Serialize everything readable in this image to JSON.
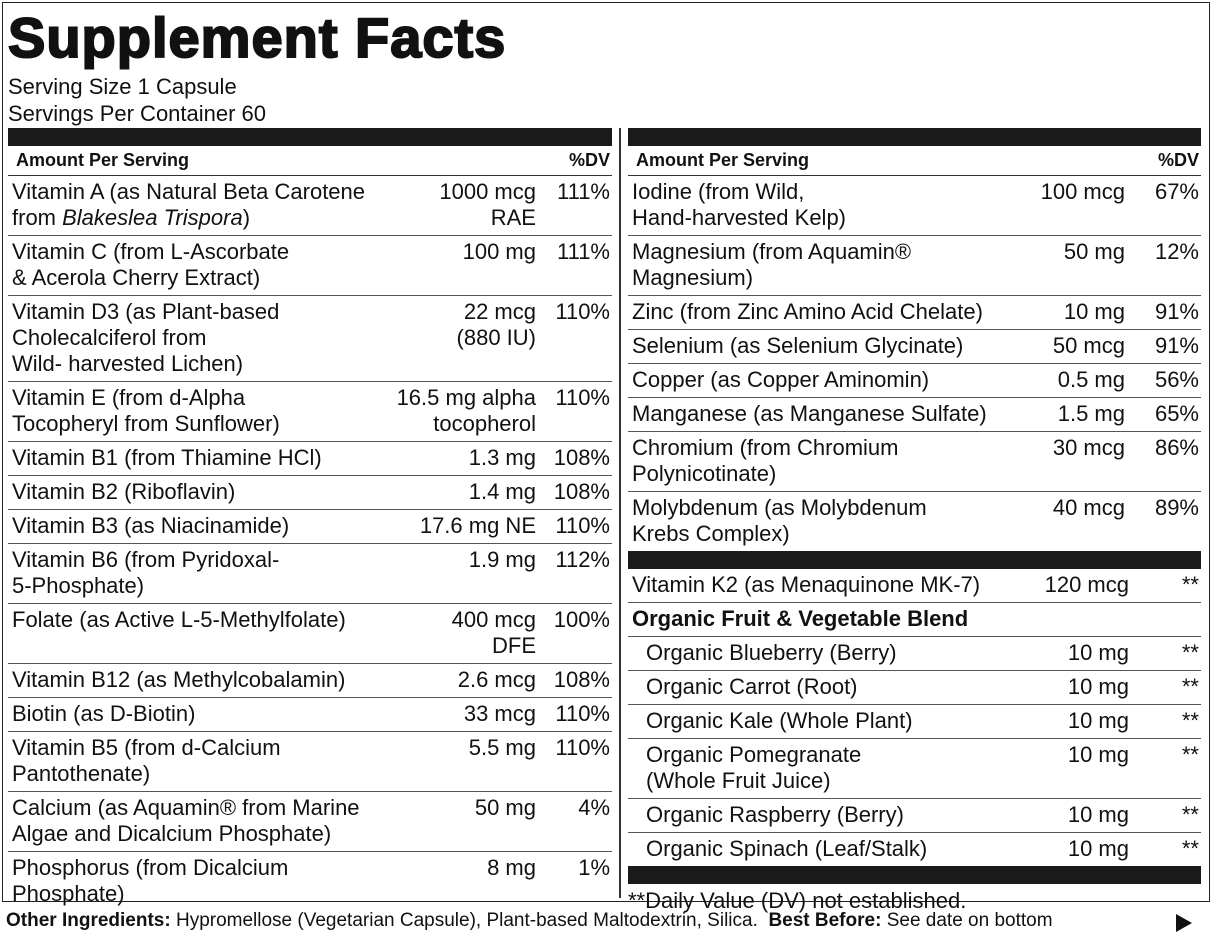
{
  "title": "Supplement Facts",
  "serving_size": "Serving Size 1 Capsule",
  "servings_per_container": "Servings Per Container 60",
  "left": {
    "header": {
      "amount": "Amount Per Serving",
      "dv": "%DV"
    },
    "rows": [
      {
        "name": "Vitamin A (as Natural Beta Carotene\nfrom ",
        "name_italic": "Blakeslea Trispora",
        "name_end": ")",
        "amount": "1000 mcg\nRAE",
        "dv": "111%"
      },
      {
        "name": "Vitamin C (from L-Ascorbate\n& Acerola Cherry Extract)",
        "amount": "100 mg",
        "dv": "111%"
      },
      {
        "name": "Vitamin D3 (as Plant-based\nCholecalciferol from\nWild- harvested Lichen)",
        "amount": "22 mcg\n(880 IU)",
        "dv": "110%"
      },
      {
        "name": "Vitamin E (from d-Alpha\nTocopheryl from Sunflower)",
        "amount": "16.5 mg alpha\ntocopherol",
        "dv": "110%"
      },
      {
        "name": "Vitamin B1 (from Thiamine HCl)",
        "amount": "1.3 mg",
        "dv": "108%"
      },
      {
        "name": "Vitamin B2 (Riboflavin)",
        "amount": "1.4 mg",
        "dv": "108%"
      },
      {
        "name": "Vitamin B3 (as Niacinamide)",
        "amount": "17.6 mg NE",
        "dv": "110%"
      },
      {
        "name": "Vitamin B6 (from Pyridoxal-\n5-Phosphate)",
        "amount": "1.9 mg",
        "dv": "112%"
      },
      {
        "name": "Folate (as Active L-5-Methylfolate)",
        "amount": "400 mcg\nDFE",
        "dv": "100%"
      },
      {
        "name": "Vitamin B12 (as Methylcobalamin)",
        "amount": "2.6 mcg",
        "dv": "108%"
      },
      {
        "name": "Biotin (as D-Biotin)",
        "amount": "33 mcg",
        "dv": "110%"
      },
      {
        "name": "Vitamin B5 (from d-Calcium\nPantothenate)",
        "amount": "5.5 mg",
        "dv": "110%"
      },
      {
        "name": "Calcium (as Aquamin® from Marine\nAlgae and Dicalcium Phosphate)",
        "amount": "50 mg",
        "dv": "4%"
      },
      {
        "name": "Phosphorus (from Dicalcium\nPhosphate)",
        "amount": "8 mg",
        "dv": "1%"
      }
    ]
  },
  "right": {
    "header": {
      "amount": "Amount Per Serving",
      "dv": "%DV"
    },
    "rows": [
      {
        "name": "Iodine (from Wild,\nHand-harvested Kelp)",
        "amount": "100 mcg",
        "dv": "67%"
      },
      {
        "name": "Magnesium (from Aquamin®\nMagnesium)",
        "amount": "50 mg",
        "dv": "12%"
      },
      {
        "name": "Zinc (from Zinc Amino Acid Chelate)",
        "amount": "10 mg",
        "dv": "91%"
      },
      {
        "name": "Selenium (as Selenium Glycinate)",
        "amount": "50 mcg",
        "dv": "91%"
      },
      {
        "name": "Copper (as Copper Aminomin)",
        "amount": "0.5 mg",
        "dv": "56%"
      },
      {
        "name": "Manganese (as Manganese Sulfate)",
        "amount": "1.5 mg",
        "dv": "65%"
      },
      {
        "name": "Chromium (from Chromium\nPolynicotinate)",
        "amount": "30 mcg",
        "dv": "86%"
      },
      {
        "name": "Molybdenum (as Molybdenum\nKrebs Complex)",
        "amount": "40 mcg",
        "dv": "89%"
      }
    ],
    "extra_rows": [
      {
        "name": "Vitamin K2 (as Menaquinone MK-7)",
        "amount": "120 mcg",
        "dv": "**"
      }
    ],
    "blend": {
      "title": "Organic Fruit & Vegetable Blend",
      "rows": [
        {
          "name": "Organic Blueberry (Berry)",
          "amount": "10 mg",
          "dv": "**"
        },
        {
          "name": "Organic Carrot (Root)",
          "amount": "10 mg",
          "dv": "**"
        },
        {
          "name": "Organic Kale (Whole Plant)",
          "amount": "10 mg",
          "dv": "**"
        },
        {
          "name": "Organic Pomegranate\n(Whole Fruit Juice)",
          "amount": "10 mg",
          "dv": "**"
        },
        {
          "name": "Organic Raspberry (Berry)",
          "amount": "10 mg",
          "dv": "**"
        },
        {
          "name": "Organic  Spinach (Leaf/Stalk)",
          "amount": "10 mg",
          "dv": "**"
        }
      ]
    },
    "footnote": "**Daily Value (DV) not established."
  },
  "footer": {
    "other_ingredients_label": "Other Ingredients:",
    "other_ingredients": "Hypromellose (Vegetarian Capsule), Plant-based Maltodextrin, Silica.",
    "best_before_label": "Best Before:",
    "best_before": "See date on bottom"
  }
}
